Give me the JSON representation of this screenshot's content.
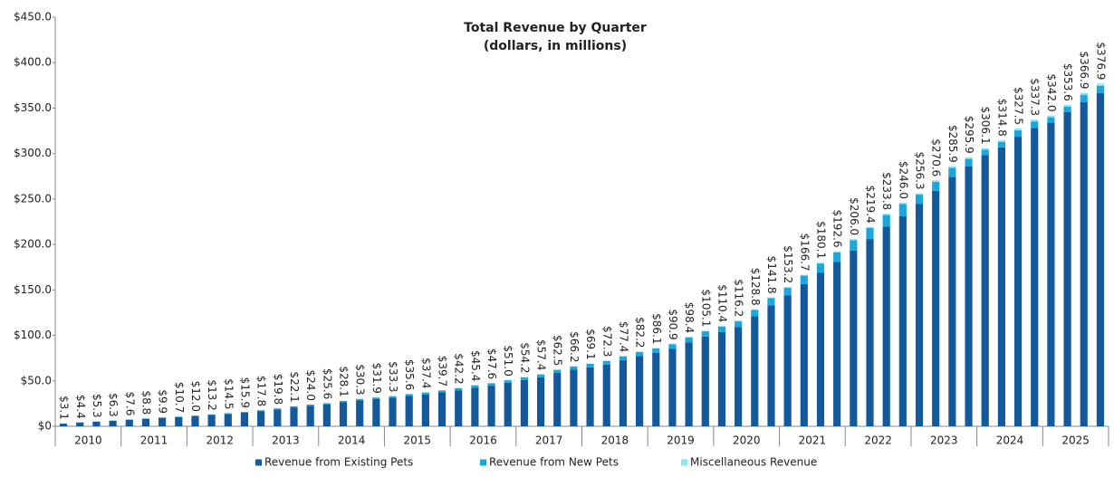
{
  "chart_data": {
    "type": "stacked_bar",
    "title": "Total Revenue by Quarter",
    "subtitle": "(dollars, in millions)",
    "categories": [
      null,
      null,
      null,
      null,
      null,
      null,
      null,
      null,
      null,
      null,
      null,
      null,
      null,
      null,
      null,
      null,
      null,
      null,
      null,
      null,
      null,
      null,
      null,
      null,
      null,
      null,
      null,
      null,
      null,
      null,
      null,
      null,
      null,
      null,
      null,
      null,
      null,
      null,
      null,
      null,
      null,
      null,
      null,
      null,
      null,
      null,
      null,
      null,
      null,
      null,
      null,
      null,
      null,
      null,
      null,
      null,
      null,
      null,
      null,
      null,
      null,
      null,
      null,
      null
    ],
    "groups": [
      "2010",
      "2011",
      "2012",
      "2013",
      "2014",
      "2015",
      "2016",
      "2017",
      "2018",
      "2019",
      "2020",
      "2021",
      "2022",
      "2023",
      "2024",
      "2025"
    ],
    "series": [
      {
        "name": "Revenue from Existing Pets",
        "color": "#13599b",
        "values": [
          2.9,
          4.2,
          5.0,
          6.0,
          7.2,
          8.2,
          9.3,
          10.0,
          11.2,
          12.4,
          13.6,
          14.9,
          16.7,
          18.6,
          20.8,
          22.6,
          24.0,
          26.4,
          28.4,
          29.9,
          31.3,
          33.4,
          35.1,
          37.3,
          39.6,
          42.6,
          44.7,
          47.9,
          50.9,
          53.9,
          58.7,
          62.2,
          64.9,
          67.9,
          72.6,
          77.2,
          80.9,
          85.4,
          92.4,
          98.7,
          103.6,
          109.1,
          120.9,
          133.1,
          143.9,
          156.5,
          169.1,
          180.8,
          193.5,
          206.0,
          219.5,
          231.0,
          244.8,
          259.0,
          274.2,
          286.1,
          298.3,
          306.9,
          318.5,
          328.3,
          333.9,
          345.5,
          356.7,
          366.6
        ]
      },
      {
        "name": "Revenue from New Pets",
        "color": "#1ba6de",
        "values": [
          0.2,
          0.2,
          0.3,
          0.3,
          0.4,
          0.5,
          0.5,
          0.6,
          0.7,
          0.7,
          0.8,
          0.9,
          1.0,
          1.1,
          1.2,
          1.3,
          1.4,
          1.5,
          1.7,
          1.8,
          1.8,
          2.0,
          2.1,
          2.2,
          2.3,
          2.5,
          2.6,
          2.8,
          3.0,
          3.2,
          3.4,
          3.6,
          3.8,
          4.0,
          4.3,
          4.5,
          4.7,
          5.0,
          5.4,
          5.8,
          6.1,
          6.4,
          7.1,
          7.8,
          8.4,
          9.2,
          9.9,
          10.6,
          11.3,
          12.1,
          12.9,
          13.5,
          10.0,
          10.0,
          10.0,
          8.0,
          6.0,
          6.0,
          7.0,
          7.0,
          6.0,
          6.0,
          8.0,
          8.0
        ]
      },
      {
        "name": "Miscellaneous Revenue",
        "color": "#8ee6f2",
        "values": [
          0.0,
          0.0,
          0.0,
          0.0,
          0.0,
          0.1,
          0.1,
          0.1,
          0.1,
          0.1,
          0.1,
          0.1,
          0.1,
          0.1,
          0.1,
          0.1,
          0.2,
          0.2,
          0.2,
          0.2,
          0.2,
          0.2,
          0.2,
          0.2,
          0.3,
          0.3,
          0.3,
          0.3,
          0.3,
          0.3,
          0.4,
          0.4,
          0.4,
          0.4,
          0.5,
          0.5,
          0.5,
          0.5,
          0.6,
          0.6,
          0.7,
          0.7,
          0.8,
          0.9,
          0.9,
          1.0,
          1.1,
          1.2,
          1.2,
          1.3,
          1.4,
          1.5,
          1.5,
          1.6,
          1.7,
          1.8,
          1.8,
          1.9,
          2.0,
          2.0,
          2.1,
          2.1,
          2.2,
          2.3
        ]
      }
    ],
    "totals": [
      3.1,
      4.4,
      5.3,
      6.3,
      7.6,
      8.8,
      9.9,
      10.7,
      12.0,
      13.2,
      14.5,
      15.9,
      17.8,
      19.8,
      22.1,
      24.0,
      25.6,
      28.1,
      30.3,
      31.9,
      33.3,
      35.6,
      37.4,
      39.7,
      42.2,
      45.4,
      47.6,
      51.0,
      54.2,
      57.4,
      62.5,
      66.2,
      69.1,
      72.3,
      77.4,
      82.2,
      86.1,
      90.9,
      98.4,
      105.1,
      110.4,
      116.2,
      128.8,
      141.8,
      153.2,
      166.7,
      180.1,
      192.6,
      206.0,
      219.4,
      233.8,
      246.0,
      256.3,
      270.6,
      285.9,
      295.9,
      306.1,
      314.8,
      327.5,
      337.3,
      342.0,
      353.6,
      366.9,
      376.9
    ],
    "total_labels": [
      "$3.1",
      "$4.4",
      "$5.3",
      "$6.3",
      "$7.6",
      "$8.8",
      "$9.9",
      "$10.7",
      "$12.0",
      "$13.2",
      "$14.5",
      "$15.9",
      "$17.8",
      "$19.8",
      "$22.1",
      "$24.0",
      "$25.6",
      "$28.1",
      "$30.3",
      "$31.9",
      "$33.3",
      "$35.6",
      "$37.4",
      "$39.7",
      "$42.2",
      "$45.4",
      "$47.6",
      "$51.0",
      "$54.2",
      "$57.4",
      "$62.5",
      "$66.2",
      "$69.1",
      "$72.3",
      "$77.4",
      "$82.2",
      "$86.1",
      "$90.9",
      "$98.4",
      "$105.1",
      "$110.4",
      "$116.2",
      "$128.8",
      "$141.8",
      "$153.2",
      "$166.7",
      "$180.1",
      "$192.6",
      "$206.0",
      "$219.4",
      "$233.8",
      "$246.0",
      "$256.3",
      "$270.6",
      "$285.9",
      "$295.9",
      "$306.1",
      "$314.8",
      "$327.5",
      "$337.3",
      "$342.0",
      "$353.6",
      "$366.9",
      "$376.9"
    ],
    "ylim": [
      0,
      450
    ],
    "yticks": [
      {
        "value": 0,
        "label": "$0"
      },
      {
        "value": 50,
        "label": "$50.0"
      },
      {
        "value": 100,
        "label": "$100.0"
      },
      {
        "value": 150,
        "label": "$150.0"
      },
      {
        "value": 200,
        "label": "$200.0"
      },
      {
        "value": 250,
        "label": "$250.0"
      },
      {
        "value": 300,
        "label": "$300.0"
      },
      {
        "value": 350,
        "label": "$350.0"
      },
      {
        "value": 400,
        "label": "$400.0"
      },
      {
        "value": 450,
        "label": "$450.0"
      }
    ],
    "grid": false,
    "legend": "bottom"
  }
}
